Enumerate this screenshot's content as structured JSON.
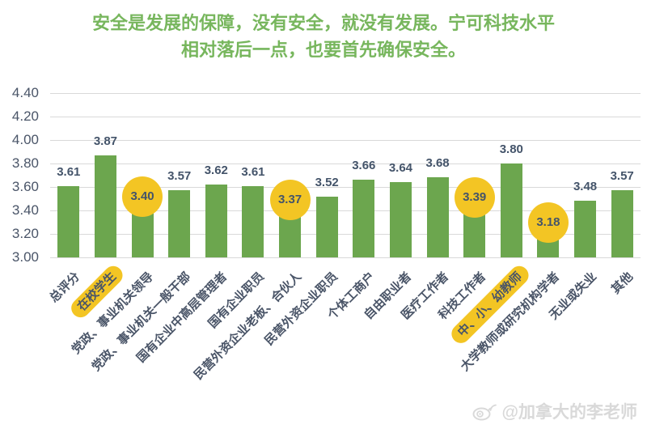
{
  "title": {
    "line1": "安全是发展的保障，没有安全，就没有发展。宁可科技水平",
    "line2": "相对落后一点，也要首先确保安全。"
  },
  "chart_data": {
    "type": "bar",
    "categories": [
      "总评分",
      "在校学生",
      "党政、事业机关领导",
      "党政、事业机关一般干部",
      "国有企业中高层管理者",
      "国有企业职员",
      "民营外资企业老板、合伙人",
      "民营外资企业职员",
      "个体工商户",
      "自由职业者",
      "医疗工作者",
      "科技工作者",
      "中、小、幼教师",
      "大学教师或研究机构学者",
      "无业或失业",
      "其他"
    ],
    "values": [
      3.61,
      3.87,
      3.4,
      3.57,
      3.62,
      3.61,
      3.37,
      3.52,
      3.66,
      3.64,
      3.68,
      3.39,
      3.8,
      3.18,
      3.48,
      3.57
    ],
    "value_labels": [
      "3.61",
      "3.87",
      "3.40",
      "3.57",
      "3.62",
      "3.61",
      "3.37",
      "3.52",
      "3.66",
      "3.64",
      "3.68",
      "3.39",
      "3.80",
      "3.18",
      "3.48",
      "3.57"
    ],
    "ylim": [
      3.0,
      4.4
    ],
    "ytick_step": 0.2,
    "ytick_labels": [
      "4.40",
      "4.20",
      "4.00",
      "3.80",
      "3.60",
      "3.40",
      "3.20",
      "3.00"
    ],
    "grid": true,
    "legend": null,
    "xlabel": "",
    "ylabel": "",
    "bar_color": "#6ca64e",
    "highlight_color": "#f3c524",
    "value_circle_indices": [
      2,
      6,
      11,
      13
    ],
    "category_highlight_indices": [
      1,
      12
    ]
  },
  "watermark": {
    "icon": "weibo-icon",
    "handle": "@加拿大的李老师"
  }
}
